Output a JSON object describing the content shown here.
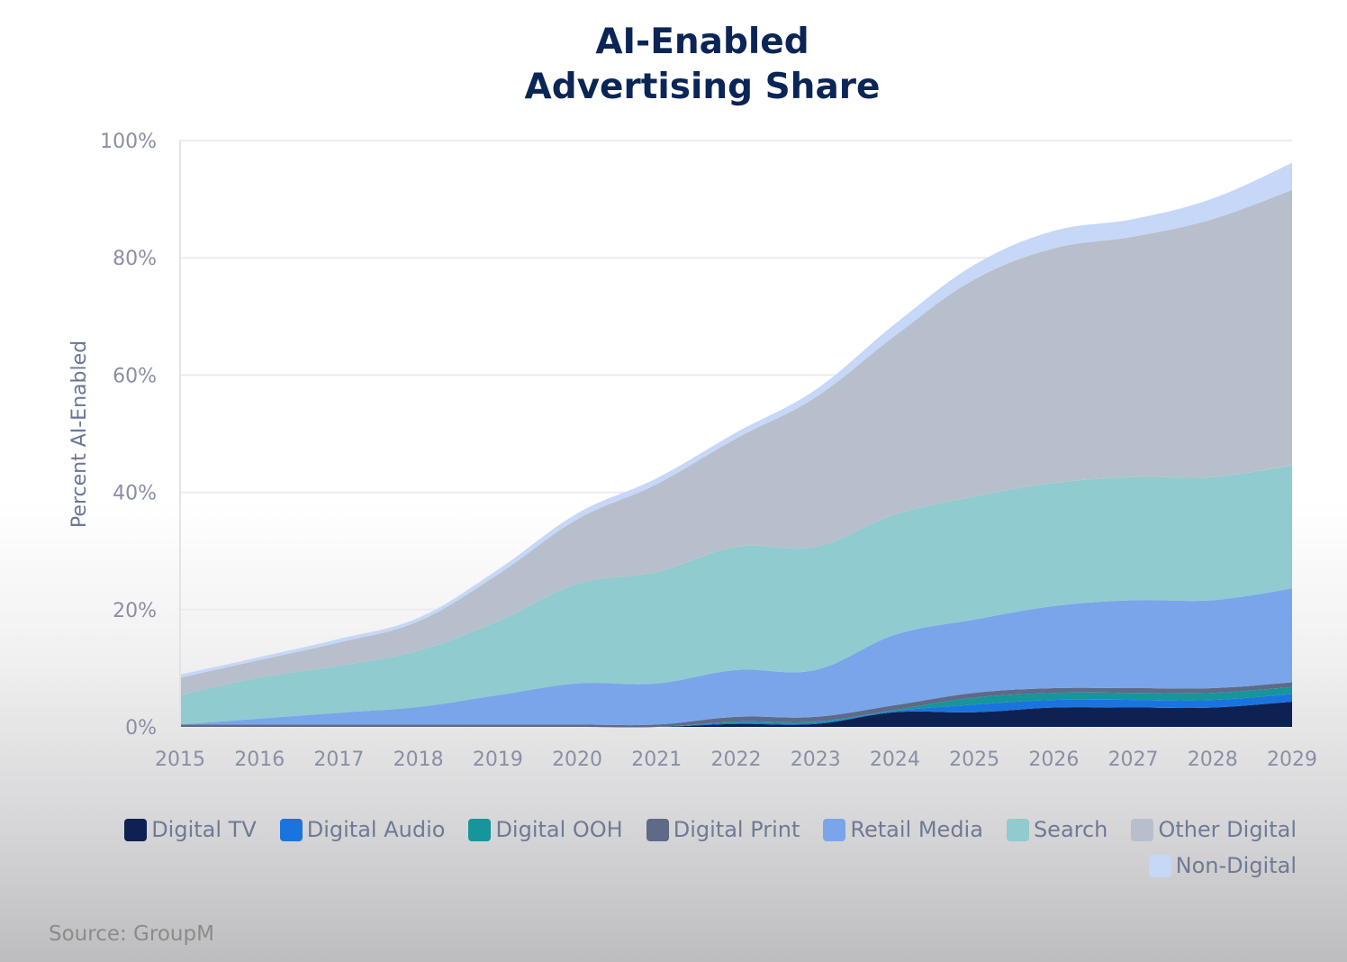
{
  "chart_data": {
    "type": "area",
    "stacked": true,
    "title": [
      "AI-Enabled",
      "Advertising Share"
    ],
    "ylabel": "Percent AI-Enabled",
    "xlabel": "",
    "ylim": [
      0,
      100
    ],
    "yticks": [
      "0%",
      "20%",
      "40%",
      "60%",
      "80%",
      "100%"
    ],
    "ytick_values": [
      0,
      20,
      40,
      60,
      80,
      100
    ],
    "x": [
      2015,
      2016,
      2017,
      2018,
      2019,
      2020,
      2021,
      2022,
      2023,
      2024,
      2025,
      2026,
      2027,
      2028,
      2029
    ],
    "series": [
      {
        "name": "Digital TV",
        "color": "#0d2252",
        "values": [
          0,
          0,
          0,
          0,
          0,
          0,
          0,
          0.5,
          0.5,
          2.5,
          2.5,
          3.3,
          3.3,
          3.3,
          4.3
        ]
      },
      {
        "name": "Digital Audio",
        "color": "#1a74e0",
        "values": [
          0,
          0,
          0,
          0,
          0,
          0,
          0,
          0.2,
          0.2,
          0.2,
          1.3,
          1.3,
          1.3,
          1.3,
          1.3
        ]
      },
      {
        "name": "Digital OOH",
        "color": "#16959b",
        "values": [
          0,
          0,
          0,
          0,
          0,
          0,
          0,
          0.2,
          0.2,
          0.2,
          1.2,
          1.2,
          1.2,
          1.2,
          1.2
        ]
      },
      {
        "name": "Digital Print",
        "color": "#5e6a87",
        "values": [
          0.4,
          0.4,
          0.4,
          0.4,
          0.4,
          0.4,
          0.4,
          0.8,
          0.8,
          0.8,
          0.8,
          0.8,
          0.8,
          0.8,
          0.8
        ]
      },
      {
        "name": "Retail Media",
        "color": "#7aa5ea",
        "values": [
          0,
          1,
          2,
          3,
          5,
          7,
          7,
          8,
          8,
          12,
          12.5,
          14,
          15,
          15,
          16
        ]
      },
      {
        "name": "Search",
        "color": "#8fcbcf",
        "values": [
          5,
          7,
          8,
          9.6,
          12.6,
          17,
          19,
          21,
          21,
          20.5,
          21,
          21,
          21,
          21,
          21
        ]
      },
      {
        "name": "Other Digital",
        "color": "#b8bfcc",
        "values": [
          3,
          3,
          4,
          5,
          8,
          11,
          15,
          18.5,
          25.5,
          30.5,
          37,
          40,
          41,
          44,
          47
        ]
      },
      {
        "name": "Non-Digital",
        "color": "#c6d7f7",
        "values": [
          0.5,
          0.5,
          0.6,
          0.6,
          0.8,
          1,
          1,
          1,
          1.3,
          2,
          2.5,
          3,
          3,
          3.5,
          4.6
        ]
      }
    ]
  },
  "source": "Source: GroupM"
}
